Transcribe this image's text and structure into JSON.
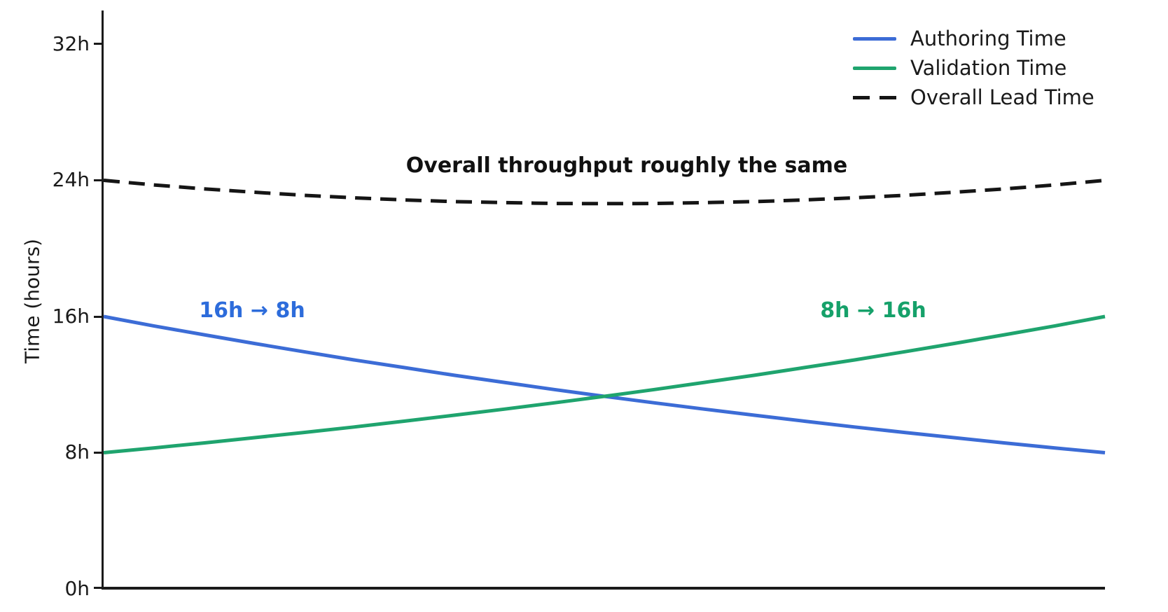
{
  "chart_data": {
    "type": "line",
    "title": "",
    "xlabel": "",
    "ylabel": "Time (hours)",
    "ylim": [
      0,
      34
    ],
    "x_range": [
      0,
      1
    ],
    "grid": false,
    "legend_position": "top-right",
    "ytick_values": [
      0,
      8,
      16,
      24,
      32
    ],
    "ytick_labels": [
      "0h",
      "8h",
      "16h",
      "24h",
      "32h"
    ],
    "x": [
      0,
      0.05,
      0.1,
      0.15,
      0.2,
      0.25,
      0.3,
      0.35,
      0.4,
      0.45,
      0.5,
      0.55,
      0.6,
      0.65,
      0.7,
      0.75,
      0.8,
      0.85,
      0.9,
      0.95,
      1
    ],
    "series": [
      {
        "name": "Authoring Time",
        "color": "#3c6cd6",
        "style": "solid",
        "values": [
          16,
          15.45,
          14.93,
          14.42,
          13.93,
          13.45,
          13.0,
          12.55,
          12.13,
          11.71,
          11.31,
          10.93,
          10.56,
          10.2,
          9.85,
          9.51,
          9.19,
          8.88,
          8.57,
          8.28,
          8
        ]
      },
      {
        "name": "Validation Time",
        "color": "#1fa46e",
        "style": "solid",
        "values": [
          8,
          8.28,
          8.57,
          8.88,
          9.19,
          9.51,
          9.85,
          10.2,
          10.56,
          10.93,
          11.31,
          11.71,
          12.13,
          12.55,
          13.0,
          13.45,
          13.93,
          14.42,
          14.93,
          15.45,
          16
        ]
      },
      {
        "name": "Overall Lead Time",
        "color": "#151515",
        "style": "dashed",
        "values": [
          24,
          23.73,
          23.5,
          23.3,
          23.12,
          22.97,
          22.85,
          22.75,
          22.69,
          22.64,
          22.63,
          22.64,
          22.69,
          22.75,
          22.85,
          22.97,
          23.12,
          23.3,
          23.5,
          23.73,
          24
        ]
      }
    ],
    "annotations": [
      {
        "text": "Overall throughput roughly the same",
        "color": "#111111"
      },
      {
        "text": "16h → 8h",
        "color": "#2d6cdb"
      },
      {
        "text": "8h → 16h",
        "color": "#16a16a"
      }
    ]
  }
}
